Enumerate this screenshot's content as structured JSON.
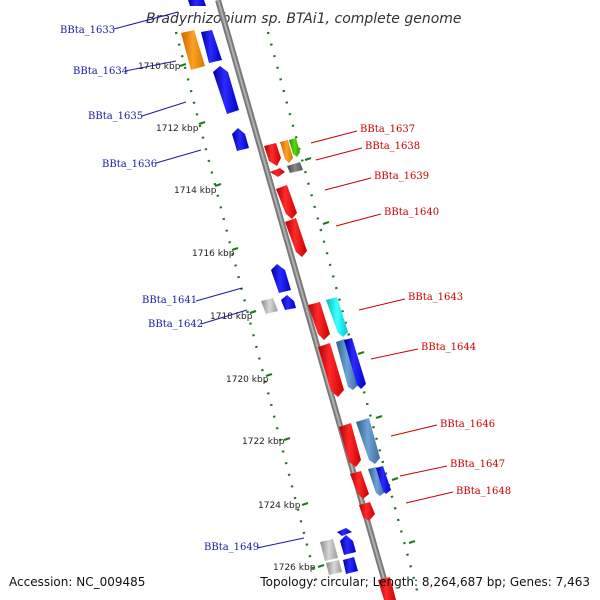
{
  "title": "Bradyrhizobium sp. BTAi1, complete genome",
  "footer": {
    "accession": "Accession: NC_009485",
    "topology": "Topology: circular; Length: 8,264,687 bp; Genes: 7,463"
  },
  "colors": {
    "backbone": "#808080",
    "tick": "#1e7a1e",
    "forward_gene": "#ff0000",
    "reverse_gene": "#0000ff",
    "left_label": "#1a1aa6",
    "right_label": "#cc0000"
  },
  "kbp_labels": [
    "1710 kbp",
    "1712 kbp",
    "1714 kbp",
    "1716 kbp",
    "1718 kbp",
    "1720 kbp",
    "1722 kbp",
    "1724 kbp",
    "1726 kbp"
  ],
  "left_genes": [
    "BBta_1633",
    "BBta_1634",
    "BBta_1635",
    "BBta_1636",
    "BBta_1641",
    "BBta_1642",
    "BBta_1649"
  ],
  "right_genes": [
    "BBta_1637",
    "BBta_1638",
    "BBta_1639",
    "BBta_1640",
    "BBta_1643",
    "BBta_1644",
    "BBta_1646",
    "BBta_1647",
    "BBta_1648"
  ]
}
